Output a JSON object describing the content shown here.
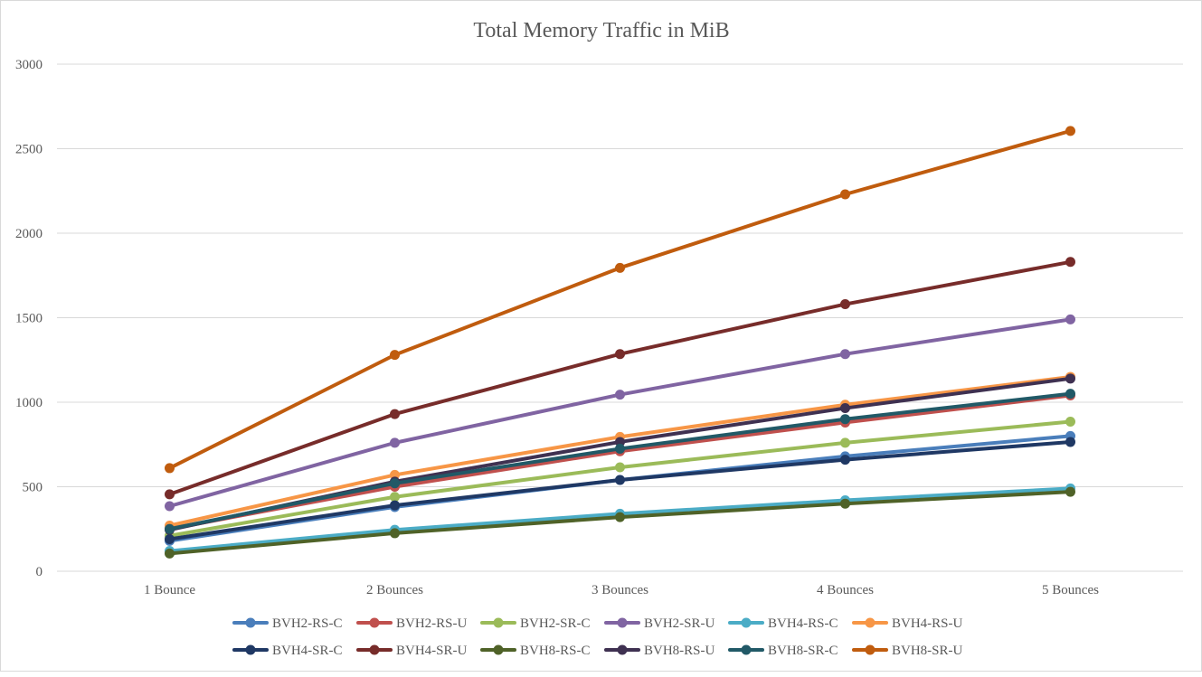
{
  "chart_data": {
    "type": "line",
    "title": "Total Memory Traffic in MiB",
    "xlabel": "",
    "ylabel": "",
    "categories": [
      "1 Bounce",
      "2 Bounces",
      "3 Bounces",
      "4 Bounces",
      "5 Bounces"
    ],
    "ylim": [
      0,
      3000
    ],
    "yticks": [
      0,
      500,
      1000,
      1500,
      2000,
      2500,
      3000
    ],
    "grid": true,
    "legend": "bottom",
    "series": [
      {
        "name": "BVH2-RS-C",
        "color": "#4a7ebb",
        "values": [
          180,
          380,
          540,
          680,
          800
        ]
      },
      {
        "name": "BVH2-RS-U",
        "color": "#c0504d",
        "values": [
          250,
          500,
          710,
          880,
          1040
        ]
      },
      {
        "name": "BVH2-SR-C",
        "color": "#9bbb59",
        "values": [
          210,
          440,
          615,
          760,
          885
        ]
      },
      {
        "name": "BVH2-SR-U",
        "color": "#8064a2",
        "values": [
          385,
          760,
          1045,
          1285,
          1490
        ]
      },
      {
        "name": "BVH4-RS-C",
        "color": "#4bacc6",
        "values": [
          120,
          245,
          340,
          420,
          490
        ]
      },
      {
        "name": "BVH4-RS-U",
        "color": "#f79646",
        "values": [
          270,
          570,
          795,
          985,
          1150
        ]
      },
      {
        "name": "BVH4-SR-C",
        "color": "#1f3864",
        "values": [
          190,
          390,
          540,
          660,
          765
        ]
      },
      {
        "name": "BVH4-SR-U",
        "color": "#772c2a",
        "values": [
          455,
          930,
          1285,
          1580,
          1830
        ]
      },
      {
        "name": "BVH8-RS-C",
        "color": "#4f6228",
        "values": [
          105,
          225,
          320,
          400,
          470
        ]
      },
      {
        "name": "BVH8-RS-U",
        "color": "#3f3151",
        "values": [
          245,
          530,
          765,
          965,
          1140
        ]
      },
      {
        "name": "BVH8-SR-C",
        "color": "#215967",
        "values": [
          250,
          520,
          725,
          900,
          1050
        ]
      },
      {
        "name": "BVH8-SR-U",
        "color": "#c05c0e",
        "values": [
          610,
          1280,
          1795,
          2230,
          2605
        ]
      }
    ]
  }
}
